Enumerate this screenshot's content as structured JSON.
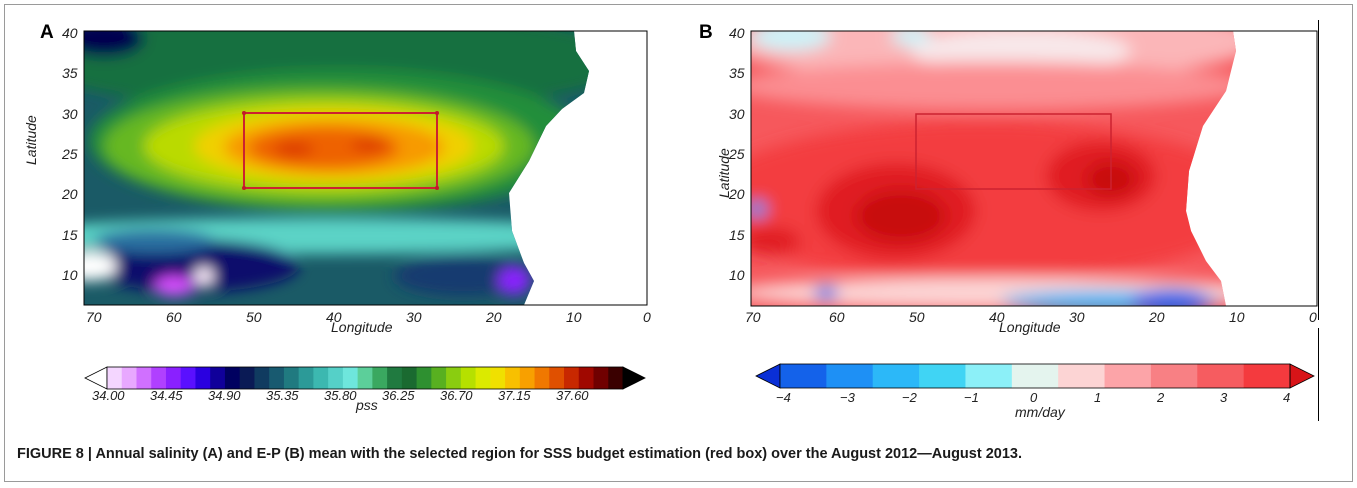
{
  "panels": [
    {
      "letter": "A",
      "xlabel": "Longitude",
      "ylabel": "Latitude",
      "xticks": [
        "70",
        "60",
        "50",
        "40",
        "30",
        "20",
        "10",
        "0"
      ],
      "yticks": [
        "40",
        "35",
        "30",
        "25",
        "20",
        "15",
        "10"
      ],
      "colorbar": {
        "ticks": [
          "34.00",
          "34.45",
          "34.90",
          "35.35",
          "35.80",
          "36.25",
          "36.70",
          "37.15",
          "37.60"
        ],
        "units": "pss",
        "colors": [
          "#ffffff",
          "#f4d6ff",
          "#e8a8ff",
          "#d070ff",
          "#b040ff",
          "#8a20ff",
          "#5a10ff",
          "#2a00e0",
          "#10009a",
          "#000060",
          "#0a1a55",
          "#103b60",
          "#185a70",
          "#207a80",
          "#2c9a98",
          "#3cb8b0",
          "#55d0c8",
          "#6ee6dc",
          "#5ccf9a",
          "#3aa860",
          "#207a40",
          "#1a6a30",
          "#2e9030",
          "#58b020",
          "#8acd10",
          "#b6e000",
          "#dbea00",
          "#f0e000",
          "#f8c000",
          "#f8a000",
          "#f07800",
          "#e05000",
          "#c82800",
          "#a00800",
          "#700000",
          "#3a0000",
          "#000000"
        ]
      }
    },
    {
      "letter": "B",
      "xlabel": "Longitude",
      "ylabel": "Latitude",
      "xticks": [
        "70",
        "60",
        "50",
        "40",
        "30",
        "20",
        "10",
        "0"
      ],
      "yticks": [
        "40",
        "35",
        "30",
        "25",
        "20",
        "15",
        "10"
      ],
      "colorbar": {
        "ticks": [
          "−4",
          "−3",
          "−2",
          "−1",
          "0",
          "1",
          "2",
          "3",
          "4"
        ],
        "units": "mm/day",
        "colors": [
          "#0a2fd6",
          "#1462ea",
          "#1e90f5",
          "#2cb8f8",
          "#40d4f4",
          "#8cf0f8",
          "#e4f4ee",
          "#fcd4d4",
          "#fca4a8",
          "#f88084",
          "#f65c60",
          "#f43a3e",
          "#d81418"
        ]
      }
    }
  ],
  "caption": "FIGURE 8 | Annual salinity (A) and E-P (B) mean with the selected region for SSS budget estimation (red box) over the August 2012—August 2013.",
  "box_color": "#cc2230"
}
